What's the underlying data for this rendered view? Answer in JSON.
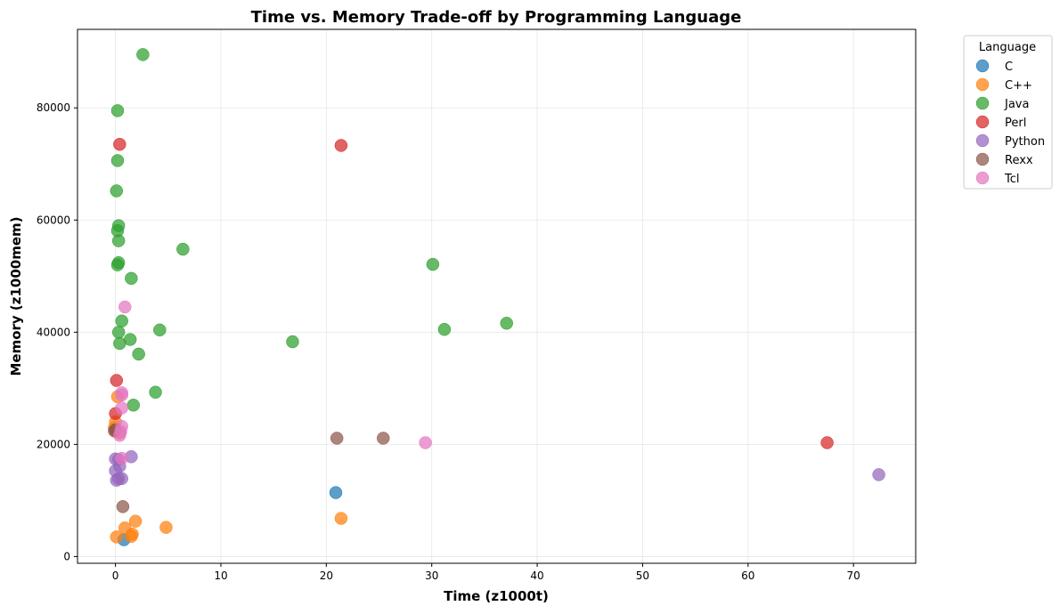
{
  "chart_data": {
    "type": "scatter",
    "title": "Time vs. Memory Trade-off by Programming Language",
    "xlabel": "Time (z1000t)",
    "ylabel": "Memory (z1000mem)",
    "xlim": [
      -3.6,
      75.9
    ],
    "ylim": [
      -1200,
      94000
    ],
    "xticks": [
      0,
      10,
      20,
      30,
      40,
      50,
      60,
      70
    ],
    "yticks": [
      0,
      20000,
      40000,
      60000,
      80000
    ],
    "xtick_labels": [
      "0",
      "10",
      "20",
      "30",
      "40",
      "50",
      "60",
      "70"
    ],
    "ytick_labels": [
      "0",
      "20000",
      "40000",
      "60000",
      "80000"
    ],
    "grid": true,
    "legend": {
      "title": "Language",
      "position": "outside-top-right"
    },
    "series": [
      {
        "name": "C",
        "color": "#1f77b4",
        "x": [
          20.9,
          0.8
        ],
        "y": [
          11400,
          3000
        ]
      },
      {
        "name": "C++",
        "color": "#ff7f0e",
        "x": [
          21.4,
          4.8,
          1.9,
          1.6,
          1.5,
          0.9,
          0.1,
          0.2,
          0.0,
          -0.1,
          0.0,
          0.4
        ],
        "y": [
          6800,
          5200,
          6300,
          4000,
          3600,
          5100,
          3500,
          28500,
          24000,
          23000,
          22500,
          22000
        ]
      },
      {
        "name": "Java",
        "color": "#2ca02c",
        "x": [
          2.6,
          0.2,
          0.2,
          0.1,
          0.3,
          0.2,
          0.3,
          0.3,
          0.2,
          6.4,
          30.1,
          1.5,
          0.6,
          4.2,
          0.3,
          1.4,
          0.4,
          16.8,
          2.2,
          3.8,
          1.7,
          31.2,
          37.1
        ],
        "y": [
          89500,
          79500,
          70600,
          65200,
          59000,
          58100,
          56300,
          52400,
          52000,
          54800,
          52100,
          49600,
          42000,
          40400,
          40000,
          38700,
          38000,
          38300,
          36100,
          29300,
          27000,
          40500,
          41600
        ]
      },
      {
        "name": "Perl",
        "color": "#d62728",
        "x": [
          0.4,
          21.4,
          0.1,
          0.0,
          67.5
        ],
        "y": [
          73500,
          73300,
          31400,
          25500,
          20300
        ]
      },
      {
        "name": "Python",
        "color": "#9467bd",
        "x": [
          72.4,
          1.5,
          0.0,
          0.3,
          0.4,
          0.0,
          0.6,
          0.1,
          0.3
        ],
        "y": [
          14600,
          17800,
          17400,
          17300,
          16100,
          15300,
          13900,
          13600,
          13900
        ]
      },
      {
        "name": "Rexx",
        "color": "#8c564b",
        "x": [
          21.0,
          25.4,
          0.7,
          -0.1,
          0.0
        ],
        "y": [
          21100,
          21100,
          8900,
          22400,
          22600
        ]
      },
      {
        "name": "Tcl",
        "color": "#e377c2",
        "x": [
          29.4,
          0.9,
          0.6,
          0.6,
          0.6,
          0.6,
          0.5,
          0.4,
          0.6
        ],
        "y": [
          20300,
          44500,
          29200,
          28800,
          26500,
          23200,
          22300,
          21600,
          17500
        ]
      }
    ]
  }
}
